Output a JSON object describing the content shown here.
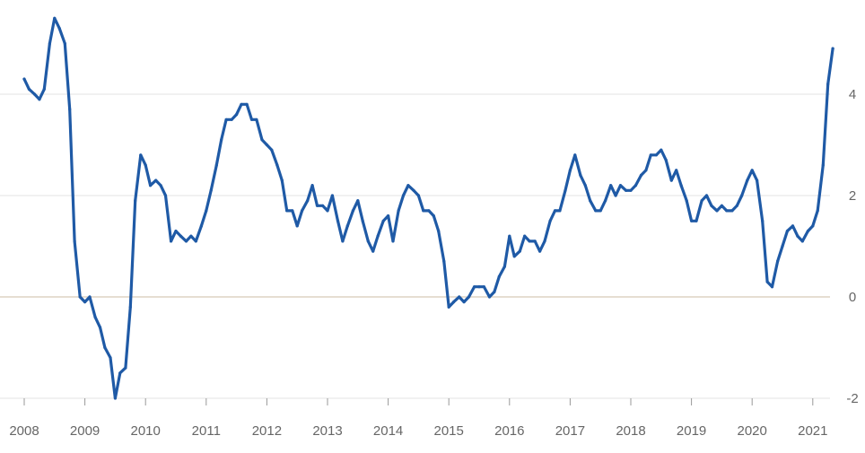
{
  "chart_data": {
    "type": "line",
    "title": "",
    "xlabel": "",
    "ylabel": "",
    "x_ticks": [
      "2008",
      "2009",
      "2010",
      "2011",
      "2012",
      "2013",
      "2014",
      "2015",
      "2016",
      "2017",
      "2018",
      "2019",
      "2020",
      "2021"
    ],
    "y_ticks": [
      "-2",
      "0",
      "2",
      "4"
    ],
    "ylim": [
      -2,
      5.5
    ],
    "xlim": [
      2008,
      2021.4
    ],
    "grid": true,
    "legend": "none",
    "y_axis_side": "right",
    "colors": {
      "line": "#1f5aa6",
      "grid": "#e3e3e3",
      "zero_line": "#d8c9b8",
      "tick": "#666666"
    },
    "series": [
      {
        "values": [
          [
            2008.0,
            4.3
          ],
          [
            2008.08,
            4.1
          ],
          [
            2008.17,
            4.0
          ],
          [
            2008.25,
            3.9
          ],
          [
            2008.33,
            4.1
          ],
          [
            2008.42,
            5.0
          ],
          [
            2008.5,
            5.5
          ],
          [
            2008.58,
            5.3
          ],
          [
            2008.67,
            5.0
          ],
          [
            2008.75,
            3.7
          ],
          [
            2008.83,
            1.1
          ],
          [
            2008.92,
            0.0
          ],
          [
            2009.0,
            -0.1
          ],
          [
            2009.08,
            0.0
          ],
          [
            2009.17,
            -0.4
          ],
          [
            2009.25,
            -0.6
          ],
          [
            2009.33,
            -1.0
          ],
          [
            2009.42,
            -1.2
          ],
          [
            2009.5,
            -2.0
          ],
          [
            2009.58,
            -1.5
          ],
          [
            2009.67,
            -1.4
          ],
          [
            2009.75,
            -0.2
          ],
          [
            2009.83,
            1.9
          ],
          [
            2009.92,
            2.8
          ],
          [
            2010.0,
            2.6
          ],
          [
            2010.08,
            2.2
          ],
          [
            2010.17,
            2.3
          ],
          [
            2010.25,
            2.2
          ],
          [
            2010.33,
            2.0
          ],
          [
            2010.42,
            1.1
          ],
          [
            2010.5,
            1.3
          ],
          [
            2010.58,
            1.2
          ],
          [
            2010.67,
            1.1
          ],
          [
            2010.75,
            1.2
          ],
          [
            2010.83,
            1.1
          ],
          [
            2010.92,
            1.4
          ],
          [
            2011.0,
            1.7
          ],
          [
            2011.08,
            2.1
          ],
          [
            2011.17,
            2.6
          ],
          [
            2011.25,
            3.1
          ],
          [
            2011.33,
            3.5
          ],
          [
            2011.42,
            3.5
          ],
          [
            2011.5,
            3.6
          ],
          [
            2011.58,
            3.8
          ],
          [
            2011.67,
            3.8
          ],
          [
            2011.75,
            3.5
          ],
          [
            2011.83,
            3.5
          ],
          [
            2011.92,
            3.1
          ],
          [
            2012.0,
            3.0
          ],
          [
            2012.08,
            2.9
          ],
          [
            2012.17,
            2.6
          ],
          [
            2012.25,
            2.3
          ],
          [
            2012.33,
            1.7
          ],
          [
            2012.42,
            1.7
          ],
          [
            2012.5,
            1.4
          ],
          [
            2012.58,
            1.7
          ],
          [
            2012.67,
            1.9
          ],
          [
            2012.75,
            2.2
          ],
          [
            2012.83,
            1.8
          ],
          [
            2012.92,
            1.8
          ],
          [
            2013.0,
            1.7
          ],
          [
            2013.08,
            2.0
          ],
          [
            2013.17,
            1.5
          ],
          [
            2013.25,
            1.1
          ],
          [
            2013.33,
            1.4
          ],
          [
            2013.42,
            1.7
          ],
          [
            2013.5,
            1.9
          ],
          [
            2013.58,
            1.5
          ],
          [
            2013.67,
            1.1
          ],
          [
            2013.75,
            0.9
          ],
          [
            2013.83,
            1.2
          ],
          [
            2013.92,
            1.5
          ],
          [
            2014.0,
            1.6
          ],
          [
            2014.08,
            1.1
          ],
          [
            2014.17,
            1.7
          ],
          [
            2014.25,
            2.0
          ],
          [
            2014.33,
            2.2
          ],
          [
            2014.42,
            2.1
          ],
          [
            2014.5,
            2.0
          ],
          [
            2014.58,
            1.7
          ],
          [
            2014.67,
            1.7
          ],
          [
            2014.75,
            1.6
          ],
          [
            2014.83,
            1.3
          ],
          [
            2014.92,
            0.7
          ],
          [
            2015.0,
            -0.2
          ],
          [
            2015.08,
            -0.1
          ],
          [
            2015.17,
            0.0
          ],
          [
            2015.25,
            -0.1
          ],
          [
            2015.33,
            0.0
          ],
          [
            2015.42,
            0.2
          ],
          [
            2015.5,
            0.2
          ],
          [
            2015.58,
            0.2
          ],
          [
            2015.67,
            0.0
          ],
          [
            2015.75,
            0.1
          ],
          [
            2015.83,
            0.4
          ],
          [
            2015.92,
            0.6
          ],
          [
            2016.0,
            1.2
          ],
          [
            2016.08,
            0.8
          ],
          [
            2016.17,
            0.9
          ],
          [
            2016.25,
            1.2
          ],
          [
            2016.33,
            1.1
          ],
          [
            2016.42,
            1.1
          ],
          [
            2016.5,
            0.9
          ],
          [
            2016.58,
            1.1
          ],
          [
            2016.67,
            1.5
          ],
          [
            2016.75,
            1.7
          ],
          [
            2016.83,
            1.7
          ],
          [
            2016.92,
            2.1
          ],
          [
            2017.0,
            2.5
          ],
          [
            2017.08,
            2.8
          ],
          [
            2017.17,
            2.4
          ],
          [
            2017.25,
            2.2
          ],
          [
            2017.33,
            1.9
          ],
          [
            2017.42,
            1.7
          ],
          [
            2017.5,
            1.7
          ],
          [
            2017.58,
            1.9
          ],
          [
            2017.67,
            2.2
          ],
          [
            2017.75,
            2.0
          ],
          [
            2017.83,
            2.2
          ],
          [
            2017.92,
            2.1
          ],
          [
            2018.0,
            2.1
          ],
          [
            2018.08,
            2.2
          ],
          [
            2018.17,
            2.4
          ],
          [
            2018.25,
            2.5
          ],
          [
            2018.33,
            2.8
          ],
          [
            2018.42,
            2.8
          ],
          [
            2018.5,
            2.9
          ],
          [
            2018.58,
            2.7
          ],
          [
            2018.67,
            2.3
          ],
          [
            2018.75,
            2.5
          ],
          [
            2018.83,
            2.2
          ],
          [
            2018.92,
            1.9
          ],
          [
            2019.0,
            1.5
          ],
          [
            2019.08,
            1.5
          ],
          [
            2019.17,
            1.9
          ],
          [
            2019.25,
            2.0
          ],
          [
            2019.33,
            1.8
          ],
          [
            2019.42,
            1.7
          ],
          [
            2019.5,
            1.8
          ],
          [
            2019.58,
            1.7
          ],
          [
            2019.67,
            1.7
          ],
          [
            2019.75,
            1.8
          ],
          [
            2019.83,
            2.0
          ],
          [
            2019.92,
            2.3
          ],
          [
            2020.0,
            2.5
          ],
          [
            2020.08,
            2.3
          ],
          [
            2020.17,
            1.5
          ],
          [
            2020.25,
            0.3
          ],
          [
            2020.33,
            0.2
          ],
          [
            2020.42,
            0.7
          ],
          [
            2020.5,
            1.0
          ],
          [
            2020.58,
            1.3
          ],
          [
            2020.67,
            1.4
          ],
          [
            2020.75,
            1.2
          ],
          [
            2020.83,
            1.1
          ],
          [
            2020.92,
            1.3
          ],
          [
            2021.0,
            1.4
          ],
          [
            2021.08,
            1.7
          ],
          [
            2021.17,
            2.6
          ],
          [
            2021.25,
            4.2
          ],
          [
            2021.33,
            4.9
          ]
        ]
      }
    ]
  }
}
